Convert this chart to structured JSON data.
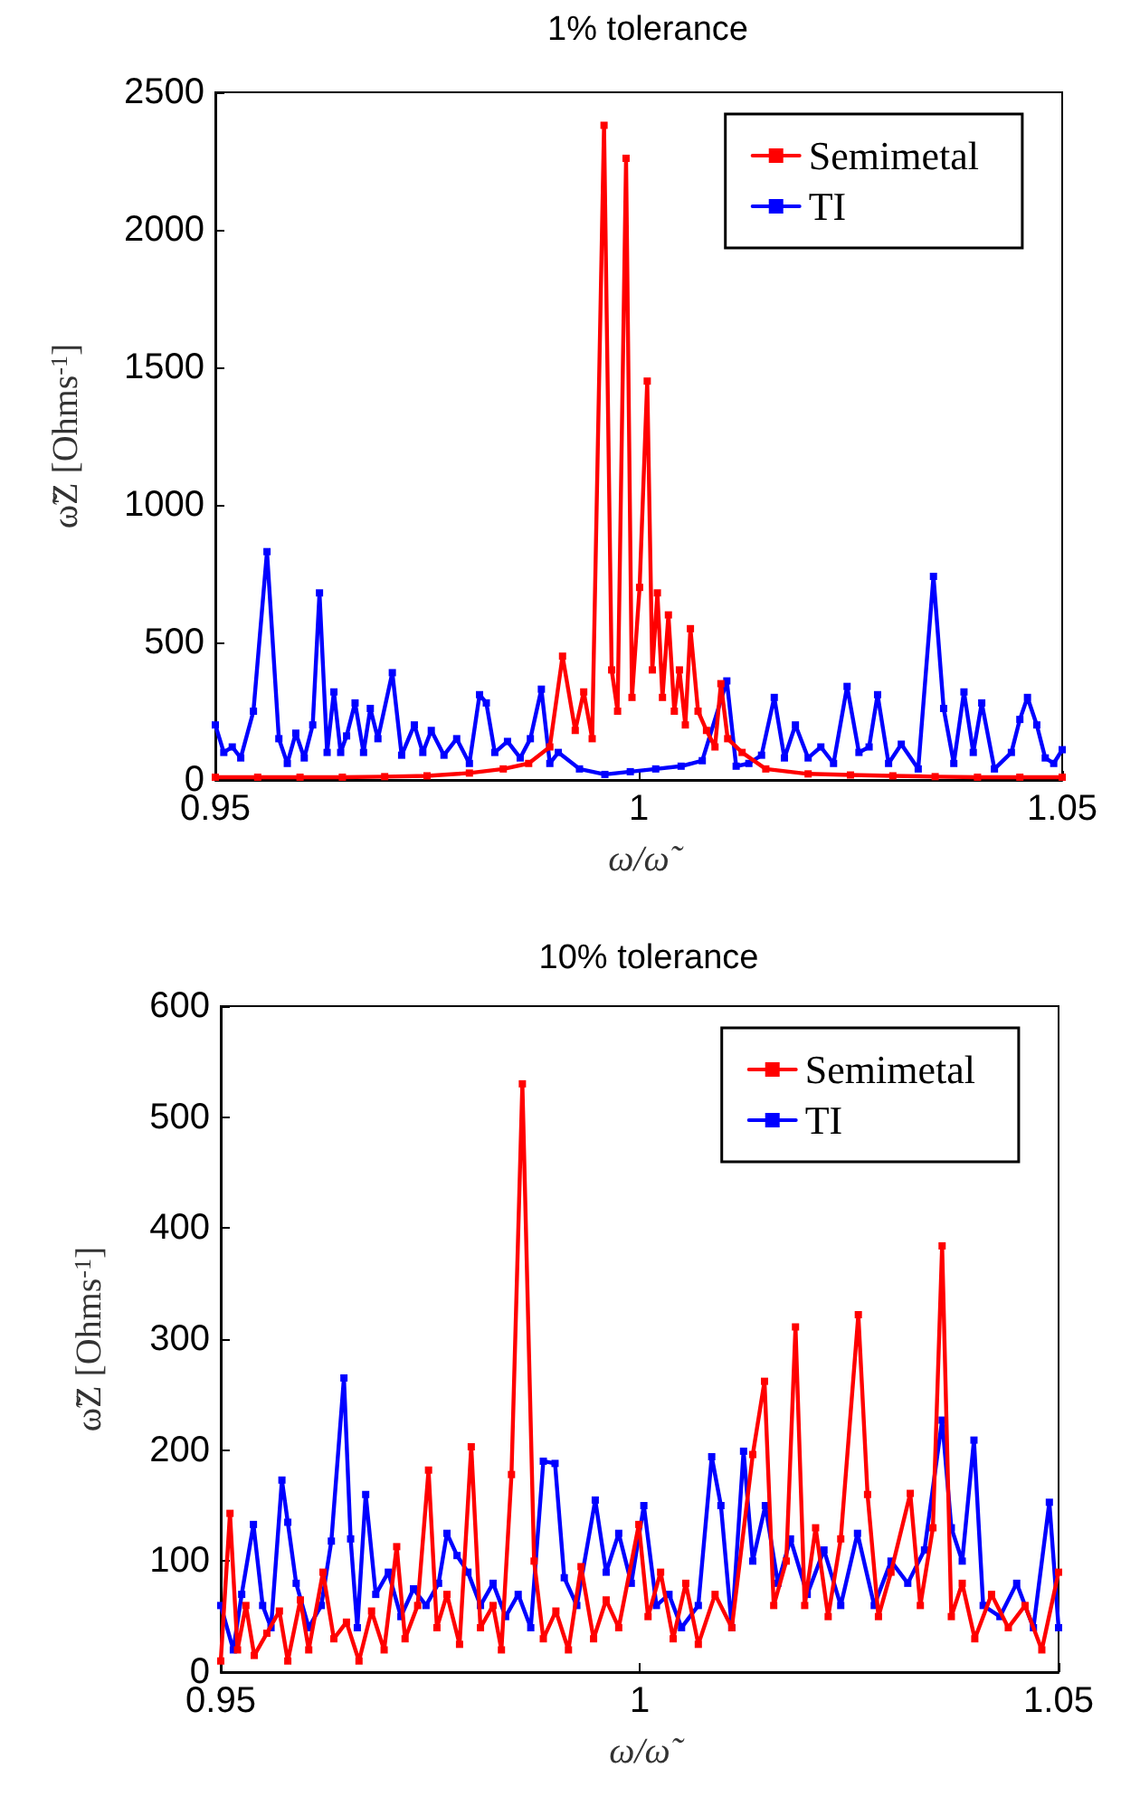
{
  "chart_data": [
    {
      "type": "line",
      "title": "1% tolerance",
      "xlabel": "ω/ω̃",
      "ylabel": "ω̃Z [Ohms$^{-1}$]",
      "xlim": [
        0.95,
        1.05
      ],
      "xticks": [
        0.95,
        1,
        1.05
      ],
      "ylim": [
        0,
        2500
      ],
      "yticks": [
        0,
        500,
        1000,
        1500,
        2000,
        2500
      ],
      "legend": "top right",
      "marker": "square",
      "line_style": "solid",
      "grid": false,
      "series": [
        {
          "name": "Semimetal",
          "color": "#ff0000",
          "x": [
            0.95,
            0.955,
            0.96,
            0.965,
            0.97,
            0.975,
            0.98,
            0.984,
            0.987,
            0.9895,
            0.991,
            0.9925,
            0.9935,
            0.9945,
            0.9959,
            0.9968,
            0.9975,
            0.9985,
            0.9992,
            1.0001,
            1.001,
            1.0016,
            1.0022,
            1.0028,
            1.0035,
            1.0042,
            1.0048,
            1.0055,
            1.0061,
            1.007,
            1.008,
            1.009,
            1.0097,
            1.0105,
            1.0122,
            1.015,
            1.02,
            1.025,
            1.03,
            1.035,
            1.04,
            1.045,
            1.05
          ],
          "values": [
            10,
            10,
            10,
            10,
            12,
            15,
            25,
            40,
            60,
            120,
            450,
            180,
            320,
            150,
            2380,
            400,
            250,
            2260,
            300,
            700,
            1450,
            400,
            680,
            300,
            600,
            250,
            400,
            200,
            550,
            250,
            180,
            120,
            350,
            150,
            100,
            40,
            22,
            18,
            15,
            12,
            10,
            10,
            10
          ]
        },
        {
          "name": "TI",
          "color": "#0000ff",
          "x": [
            0.95,
            0.951,
            0.952,
            0.953,
            0.9545,
            0.9561,
            0.9575,
            0.9585,
            0.9595,
            0.9605,
            0.9615,
            0.9623,
            0.9632,
            0.964,
            0.9648,
            0.9655,
            0.9665,
            0.9675,
            0.9683,
            0.9692,
            0.9709,
            0.972,
            0.9735,
            0.9745,
            0.9755,
            0.977,
            0.9785,
            0.98,
            0.9812,
            0.982,
            0.983,
            0.9845,
            0.986,
            0.9872,
            0.9885,
            0.9895,
            0.9905,
            0.993,
            0.996,
            0.999,
            1.002,
            1.005,
            1.0075,
            1.0104,
            1.0115,
            1.013,
            1.0145,
            1.016,
            1.0172,
            1.0185,
            1.02,
            1.0215,
            1.023,
            1.0246,
            1.026,
            1.0272,
            1.0282,
            1.0295,
            1.031,
            1.033,
            1.0348,
            1.036,
            1.0372,
            1.0384,
            1.0395,
            1.0405,
            1.042,
            1.044,
            1.045,
            1.0459,
            1.047,
            1.048,
            1.049,
            1.05
          ],
          "values": [
            200,
            100,
            120,
            80,
            250,
            830,
            150,
            60,
            170,
            80,
            200,
            680,
            100,
            320,
            100,
            160,
            280,
            100,
            260,
            150,
            390,
            90,
            200,
            100,
            180,
            90,
            150,
            60,
            310,
            280,
            100,
            140,
            80,
            150,
            330,
            60,
            100,
            40,
            20,
            30,
            40,
            50,
            70,
            360,
            50,
            60,
            90,
            300,
            80,
            200,
            80,
            120,
            60,
            340,
            100,
            120,
            310,
            60,
            130,
            40,
            740,
            260,
            60,
            320,
            100,
            280,
            40,
            100,
            220,
            300,
            200,
            80,
            60,
            110
          ]
        }
      ]
    },
    {
      "type": "line",
      "title": "10% tolerance",
      "xlabel": "ω/ω̃",
      "ylabel": "ω̃Z [Ohms$^{-1}$]",
      "xlim": [
        0.95,
        1.05
      ],
      "xticks": [
        0.95,
        1,
        1.05
      ],
      "ylim": [
        0,
        600
      ],
      "yticks": [
        0,
        100,
        200,
        300,
        400,
        500,
        600
      ],
      "legend": "top right",
      "marker": "square",
      "line_style": "solid",
      "grid": false,
      "series": [
        {
          "name": "Semimetal",
          "color": "#ff0000",
          "x": [
            0.95,
            0.9511,
            0.952,
            0.953,
            0.954,
            0.9555,
            0.957,
            0.958,
            0.9595,
            0.9605,
            0.9622,
            0.9635,
            0.965,
            0.9665,
            0.968,
            0.9695,
            0.971,
            0.972,
            0.9735,
            0.9748,
            0.9758,
            0.977,
            0.9785,
            0.9799,
            0.981,
            0.9825,
            0.9835,
            0.9847,
            0.986,
            0.9874,
            0.9885,
            0.99,
            0.9915,
            0.993,
            0.9945,
            0.996,
            0.9975,
            0.9999,
            1.001,
            1.0025,
            1.004,
            1.0055,
            1.007,
            1.009,
            1.011,
            1.0135,
            1.0149,
            1.016,
            1.0175,
            1.0186,
            1.0197,
            1.021,
            1.0225,
            1.024,
            1.0261,
            1.0272,
            1.0285,
            1.03,
            1.0323,
            1.0335,
            1.035,
            1.0361,
            1.0372,
            1.0385,
            1.04,
            1.042,
            1.044,
            1.046,
            1.048,
            1.05
          ],
          "values": [
            10,
            143,
            20,
            60,
            15,
            35,
            55,
            10,
            65,
            20,
            90,
            30,
            45,
            10,
            55,
            20,
            113,
            30,
            60,
            182,
            40,
            70,
            25,
            203,
            40,
            60,
            20,
            178,
            530,
            100,
            30,
            55,
            20,
            95,
            30,
            65,
            40,
            133,
            50,
            90,
            30,
            80,
            25,
            70,
            40,
            196,
            262,
            60,
            100,
            311,
            60,
            130,
            50,
            120,
            322,
            160,
            50,
            90,
            161,
            60,
            130,
            384,
            50,
            80,
            30,
            70,
            40,
            60,
            20,
            90
          ]
        },
        {
          "name": "TI",
          "color": "#0000ff",
          "x": [
            0.95,
            0.9515,
            0.9525,
            0.9539,
            0.955,
            0.956,
            0.9573,
            0.958,
            0.959,
            0.9605,
            0.962,
            0.9632,
            0.9647,
            0.9655,
            0.9663,
            0.9673,
            0.9685,
            0.97,
            0.9715,
            0.973,
            0.9745,
            0.976,
            0.977,
            0.9782,
            0.9795,
            0.981,
            0.9825,
            0.984,
            0.9855,
            0.987,
            0.9885,
            0.9899,
            0.991,
            0.9925,
            0.9947,
            0.996,
            0.9975,
            0.999,
            1.0005,
            1.002,
            1.0035,
            1.005,
            1.007,
            1.0086,
            1.0097,
            1.011,
            1.0124,
            1.0135,
            1.015,
            1.0165,
            1.018,
            1.02,
            1.022,
            1.024,
            1.026,
            1.028,
            1.03,
            1.032,
            1.034,
            1.0361,
            1.0372,
            1.0385,
            1.0399,
            1.041,
            1.043,
            1.045,
            1.047,
            1.0489,
            1.05
          ],
          "values": [
            60,
            20,
            70,
            133,
            60,
            40,
            173,
            135,
            80,
            40,
            60,
            118,
            265,
            120,
            40,
            160,
            70,
            90,
            50,
            75,
            60,
            80,
            125,
            105,
            90,
            60,
            80,
            50,
            70,
            40,
            190,
            188,
            85,
            60,
            155,
            90,
            125,
            80,
            150,
            60,
            70,
            40,
            60,
            194,
            150,
            40,
            199,
            100,
            150,
            80,
            120,
            70,
            110,
            60,
            125,
            60,
            100,
            80,
            110,
            227,
            130,
            100,
            209,
            60,
            50,
            80,
            40,
            153,
            40
          ]
        }
      ]
    }
  ]
}
